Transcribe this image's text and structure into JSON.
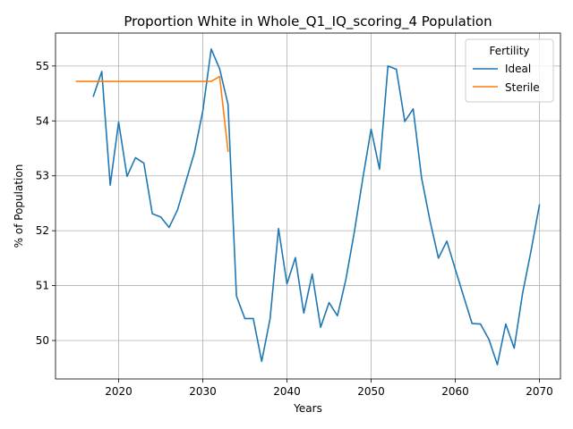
{
  "chart_data": {
    "type": "line",
    "title": "Proportion White in Whole_Q1_IQ_scoring_4 Population",
    "xlabel": "Years",
    "ylabel": "% of Population",
    "xlim": [
      2012.5,
      2072.5
    ],
    "ylim": [
      49.3,
      55.6
    ],
    "xticks": [
      2020,
      2030,
      2040,
      2050,
      2060,
      2070
    ],
    "yticks": [
      50,
      51,
      52,
      53,
      54,
      55
    ],
    "grid": true,
    "legend": {
      "title": "Fertility",
      "position": "top-right"
    },
    "series": [
      {
        "name": "Ideal",
        "color": "#1f77b4",
        "x": [
          2017,
          2018,
          2019,
          2020,
          2021,
          2022,
          2023,
          2024,
          2025,
          2026,
          2027,
          2028,
          2029,
          2030,
          2031,
          2032,
          2033,
          2034,
          2035,
          2036,
          2037,
          2038,
          2039,
          2040,
          2041,
          2042,
          2043,
          2044,
          2045,
          2046,
          2047,
          2048,
          2049,
          2050,
          2051,
          2052,
          2053,
          2054,
          2055,
          2056,
          2057,
          2058,
          2059,
          2060,
          2061,
          2062,
          2063,
          2064,
          2065,
          2066,
          2067,
          2068,
          2069,
          2070
        ],
        "y": [
          54.45,
          54.9,
          52.83,
          53.98,
          52.99,
          53.33,
          53.23,
          52.31,
          52.25,
          52.06,
          52.38,
          52.9,
          53.42,
          54.18,
          55.31,
          54.95,
          54.3,
          50.81,
          50.4,
          50.4,
          49.62,
          50.4,
          52.04,
          51.03,
          51.51,
          50.5,
          51.21,
          50.24,
          50.69,
          50.45,
          51.11,
          51.97,
          52.94,
          53.85,
          53.12,
          55.0,
          54.94,
          53.99,
          54.22,
          52.96,
          52.18,
          51.5,
          51.81,
          51.3,
          50.8,
          50.31,
          50.3,
          50.02,
          49.56,
          50.3,
          49.86,
          50.86,
          51.63,
          52.47
        ]
      },
      {
        "name": "Sterile",
        "color": "#ff7f0e",
        "x": [
          2015,
          2016,
          2017,
          2018,
          2019,
          2020,
          2021,
          2022,
          2023,
          2024,
          2025,
          2026,
          2027,
          2028,
          2029,
          2030,
          2031,
          2032,
          2033
        ],
        "y": [
          54.72,
          54.72,
          54.72,
          54.72,
          54.72,
          54.72,
          54.72,
          54.72,
          54.72,
          54.72,
          54.72,
          54.72,
          54.72,
          54.72,
          54.72,
          54.72,
          54.72,
          54.81,
          53.45
        ]
      }
    ]
  }
}
